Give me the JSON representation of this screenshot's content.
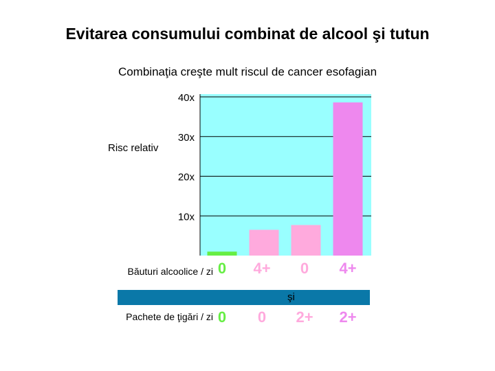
{
  "title": "Evitarea consumului combinat de alcool şi tutun",
  "subtitle": "Combinaţia creşte mult riscul de cancer esofagian",
  "chart_data": {
    "type": "bar",
    "ylabel": "Risc relativ",
    "ylim": [
      0,
      40
    ],
    "yticks": [
      {
        "value": 10,
        "label": "10x"
      },
      {
        "value": 20,
        "label": "20x"
      },
      {
        "value": 30,
        "label": "30x"
      },
      {
        "value": 40,
        "label": "40x"
      }
    ],
    "grid": true,
    "plot_background": "#99ffff",
    "values": [
      1,
      6.5,
      7.7,
      38.6
    ],
    "bar_colors": [
      "#66ee44",
      "#ffaadd",
      "#ffaadd",
      "#ee88ee"
    ],
    "drinks_label": "Băuturi alcoolice / zi",
    "cigarettes_label": "Pachete de ţigări / zi",
    "and_label": "şi",
    "drinks_per_day": [
      "0",
      "4+",
      "0",
      "4+"
    ],
    "cigarette_packs_per_day": [
      "0",
      "0",
      "2+",
      "2+"
    ],
    "drinks_colors": [
      "#66ee44",
      "#ffaadd",
      "#ffaadd",
      "#ee88ee"
    ],
    "cig_colors": [
      "#66ee44",
      "#ffaadd",
      "#ffaadd",
      "#ee88ee"
    ]
  }
}
